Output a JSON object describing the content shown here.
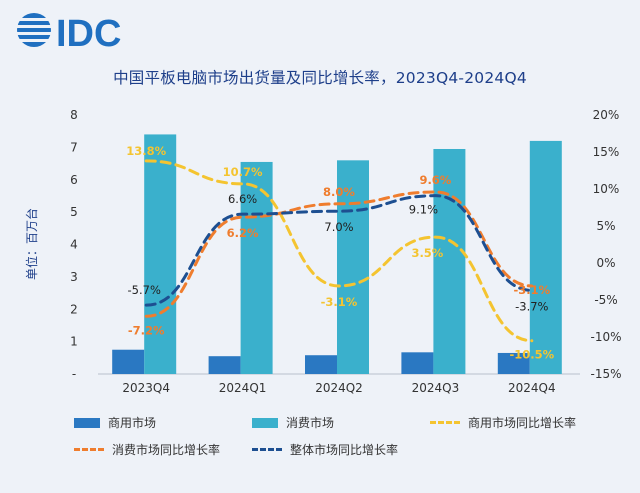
{
  "logo": {
    "text": "IDC",
    "color": "#1f6fc0",
    "icon": "idc-globe-icon"
  },
  "title": "中国平板电脑市场出货量及同比增长率，2023Q4-2024Q4",
  "chart_data": {
    "type": "bar",
    "title": "中国平板电脑市场出货量及同比增长率，2023Q4-2024Q4",
    "categories": [
      "2023Q4",
      "2024Q1",
      "2024Q2",
      "2024Q3",
      "2024Q4"
    ],
    "ylabel": "单位：百万台",
    "ylim": [
      0,
      8
    ],
    "y_ticks": [
      "-",
      "1",
      "2",
      "3",
      "4",
      "5",
      "6",
      "7",
      "8"
    ],
    "y2lim": [
      -15,
      20
    ],
    "y2_ticks": [
      "-15%",
      "-10%",
      "-5%",
      "0%",
      "5%",
      "10%",
      "15%",
      "20%"
    ],
    "series": [
      {
        "name": "商用市场",
        "kind": "bar",
        "color": "#2a78c2",
        "values": [
          0.75,
          0.55,
          0.58,
          0.67,
          0.65
        ]
      },
      {
        "name": "消费市场",
        "kind": "bar",
        "color": "#3ab0cc",
        "values": [
          7.4,
          6.55,
          6.6,
          6.95,
          7.2
        ]
      },
      {
        "name": "商用市场同比增长率",
        "kind": "line",
        "axis": "right",
        "color": "#f4c430",
        "values": [
          13.8,
          10.7,
          -3.1,
          3.5,
          -10.5
        ],
        "labels": [
          "13.8%",
          "10.7%",
          "-3.1%",
          "3.5%",
          "-10.5%"
        ]
      },
      {
        "name": "消费市场同比增长率",
        "kind": "line",
        "axis": "right",
        "color": "#ef7d2e",
        "values": [
          -7.2,
          6.2,
          8.0,
          9.6,
          -3.1
        ],
        "labels": [
          "-7.2%",
          "6.2%",
          "8.0%",
          "9.6%",
          "-3.1%"
        ]
      },
      {
        "name": "整体市场同比增长率",
        "kind": "line",
        "axis": "right",
        "color": "#1d4f91",
        "values": [
          -5.7,
          6.6,
          7.0,
          9.1,
          -3.7
        ],
        "labels": [
          "-5.7%",
          "6.6%",
          "7.0%",
          "9.1%",
          "-3.7%"
        ]
      }
    ],
    "grid": false,
    "legend": "bottom"
  }
}
